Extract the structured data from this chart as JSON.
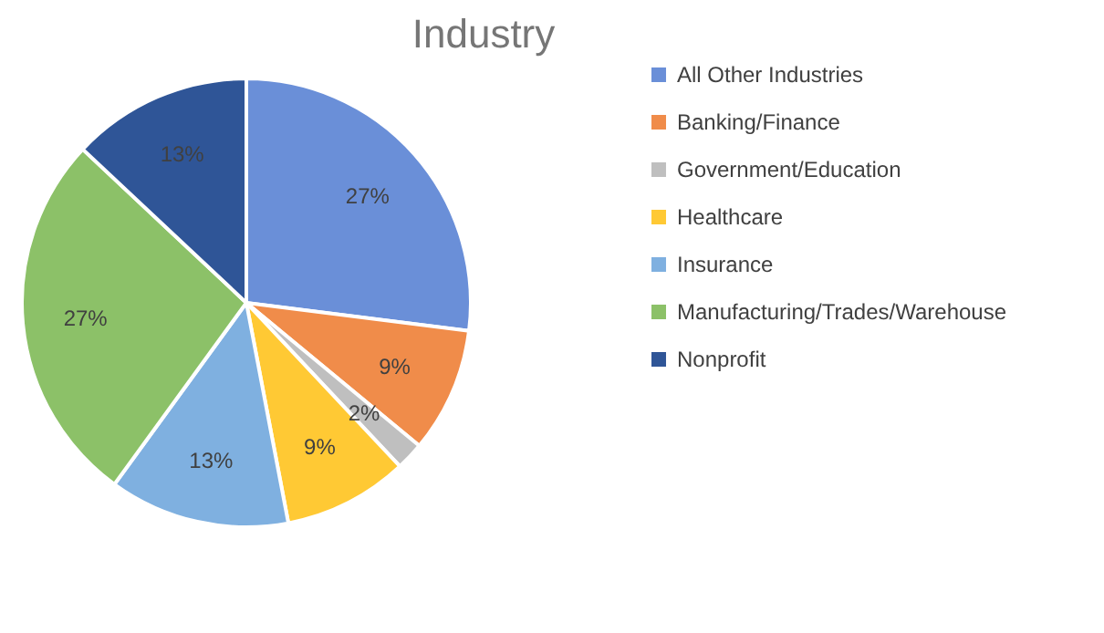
{
  "chart_data": {
    "type": "pie",
    "title": "Industry",
    "categories": [
      "All Other Industries",
      "Banking/Finance",
      "Government/Education",
      "Healthcare",
      "Insurance",
      "Manufacturing/Trades/Warehouse",
      "Nonprofit"
    ],
    "values": [
      27,
      9,
      2,
      9,
      13,
      27,
      13
    ],
    "colors": [
      "#6a8fd8",
      "#f08c4a",
      "#bfbfbf",
      "#ffc934",
      "#7fb0e0",
      "#8cc168",
      "#2f5597"
    ],
    "value_labels": [
      "27%",
      "9%",
      "2%",
      "9%",
      "13%",
      "27%",
      "13%"
    ],
    "legend": "right"
  }
}
